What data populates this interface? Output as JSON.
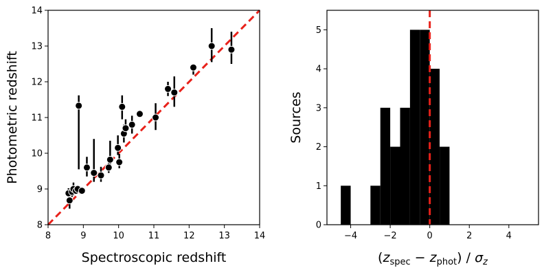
{
  "chart_data": [
    {
      "type": "scatter",
      "xlabel": "Spectroscopic redshift",
      "ylabel": "Photometric redshift",
      "xlim": [
        8,
        14
      ],
      "ylim": [
        8,
        14
      ],
      "xticks": [
        "8",
        "9",
        "10",
        "11",
        "12",
        "13",
        "14"
      ],
      "yticks": [
        "8",
        "9",
        "10",
        "11",
        "12",
        "13",
        "14"
      ],
      "one_to_one_line": {
        "color": "#e8211a",
        "style": "dashed"
      },
      "marker_color": "#000000",
      "points": [
        {
          "x": 8.58,
          "y": 8.88,
          "yerr_low": 8.72,
          "yerr_high": 9.02
        },
        {
          "x": 8.61,
          "y": 8.68,
          "yerr_low": 8.45,
          "yerr_high": 8.85
        },
        {
          "x": 8.68,
          "y": 8.92,
          "yerr_low": 8.78,
          "yerr_high": 9.05
        },
        {
          "x": 8.72,
          "y": 9.0,
          "yerr_low": 8.82,
          "yerr_high": 9.18
        },
        {
          "x": 8.79,
          "y": 8.95,
          "yerr_low": 8.85,
          "yerr_high": 9.05
        },
        {
          "x": 8.84,
          "y": 9.0,
          "yerr_low": 8.9,
          "yerr_high": 9.1
        },
        {
          "x": 8.87,
          "y": 11.33,
          "yerr_low": 9.55,
          "yerr_high": 11.62
        },
        {
          "x": 8.96,
          "y": 8.95,
          "yerr_low": 8.85,
          "yerr_high": 9.05
        },
        {
          "x": 9.1,
          "y": 9.6,
          "yerr_low": 9.35,
          "yerr_high": 9.9
        },
        {
          "x": 9.3,
          "y": 9.45,
          "yerr_low": 9.2,
          "yerr_high": 10.4
        },
        {
          "x": 9.5,
          "y": 9.38,
          "yerr_low": 9.2,
          "yerr_high": 9.62
        },
        {
          "x": 9.72,
          "y": 9.6,
          "yerr_low": 9.45,
          "yerr_high": 9.75
        },
        {
          "x": 9.76,
          "y": 9.82,
          "yerr_low": 9.6,
          "yerr_high": 10.35
        },
        {
          "x": 9.98,
          "y": 10.15,
          "yerr_low": 9.95,
          "yerr_high": 10.5
        },
        {
          "x": 10.02,
          "y": 9.75,
          "yerr_low": 9.58,
          "yerr_high": 9.98
        },
        {
          "x": 10.1,
          "y": 11.3,
          "yerr_low": 10.95,
          "yerr_high": 11.62
        },
        {
          "x": 10.15,
          "y": 10.55,
          "yerr_low": 10.3,
          "yerr_high": 10.8
        },
        {
          "x": 10.2,
          "y": 10.7,
          "yerr_low": 10.5,
          "yerr_high": 10.95
        },
        {
          "x": 10.38,
          "y": 10.8,
          "yerr_low": 10.55,
          "yerr_high": 11.05
        },
        {
          "x": 10.6,
          "y": 11.1,
          "yerr_low": 11.03,
          "yerr_high": 11.17
        },
        {
          "x": 11.05,
          "y": 11.0,
          "yerr_low": 10.65,
          "yerr_high": 11.4
        },
        {
          "x": 11.4,
          "y": 11.8,
          "yerr_low": 11.6,
          "yerr_high": 12.0
        },
        {
          "x": 11.58,
          "y": 11.7,
          "yerr_low": 11.3,
          "yerr_high": 12.15
        },
        {
          "x": 12.12,
          "y": 12.4,
          "yerr_low": 12.2,
          "yerr_high": 12.5
        },
        {
          "x": 12.64,
          "y": 13.0,
          "yerr_low": 12.55,
          "yerr_high": 13.5
        },
        {
          "x": 13.2,
          "y": 12.9,
          "yerr_low": 12.5,
          "yerr_high": 13.4
        }
      ]
    },
    {
      "type": "bar",
      "subtype": "histogram",
      "xlabel_parts": {
        "open": "(",
        "z1": "z",
        "sub1": "spec",
        "minus": " − ",
        "z2": "z",
        "sub2": "phot",
        "close": ") / ",
        "sigma": "σ",
        "sub3": "z"
      },
      "ylabel": "Sources",
      "xlim": [
        -5.2,
        5.5
      ],
      "ylim": [
        0,
        5.5
      ],
      "xticks": [
        "−4",
        "−2",
        "0",
        "2",
        "4"
      ],
      "xtick_values": [
        -4,
        -2,
        0,
        2,
        4
      ],
      "yticks": [
        "0",
        "1",
        "2",
        "3",
        "4",
        "5"
      ],
      "bar_color": "#000000",
      "reference_line": {
        "x": 0,
        "color": "#e8211a",
        "style": "dashed"
      },
      "bins": [
        {
          "x0": -4.5,
          "x1": -4.0,
          "count": 1
        },
        {
          "x0": -3.0,
          "x1": -2.5,
          "count": 1
        },
        {
          "x0": -2.5,
          "x1": -2.0,
          "count": 3
        },
        {
          "x0": -2.0,
          "x1": -1.5,
          "count": 2
        },
        {
          "x0": -1.5,
          "x1": -1.0,
          "count": 3
        },
        {
          "x0": -1.0,
          "x1": -0.5,
          "count": 5
        },
        {
          "x0": -0.5,
          "x1": 0.0,
          "count": 5
        },
        {
          "x0": 0.0,
          "x1": 0.5,
          "count": 4
        },
        {
          "x0": 0.5,
          "x1": 1.0,
          "count": 2
        }
      ]
    }
  ]
}
